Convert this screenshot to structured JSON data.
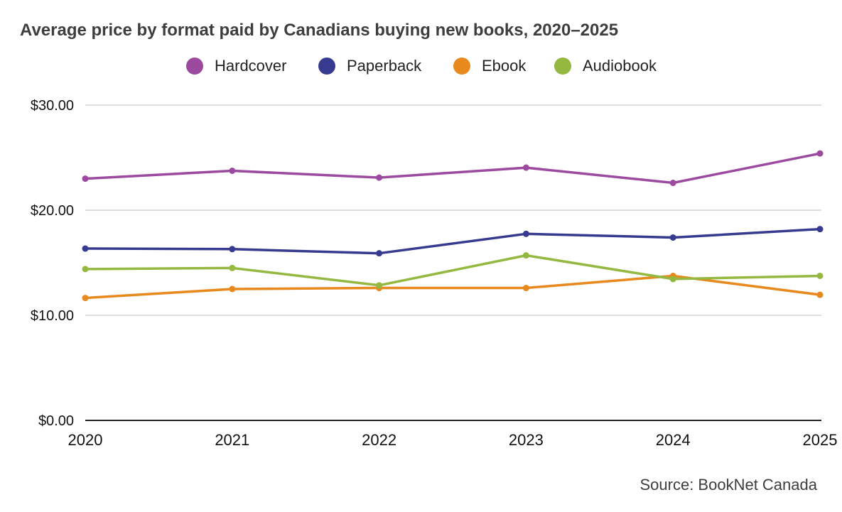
{
  "chart_data": {
    "type": "line",
    "title": "Average price by format paid by Canadians buying new books, 2020–2025",
    "xlabel": "",
    "ylabel": "",
    "x": [
      "2020",
      "2021",
      "2022",
      "2023",
      "2024",
      "2025"
    ],
    "ylim": [
      0,
      30
    ],
    "y_ticks": [
      {
        "value": 0,
        "label": "$0.00"
      },
      {
        "value": 10,
        "label": "$10.00"
      },
      {
        "value": 20,
        "label": "$20.00"
      },
      {
        "value": 30,
        "label": "$30.00"
      }
    ],
    "grid": true,
    "legend_position": "top-center",
    "series": [
      {
        "name": "Hardcover",
        "color": "#9b4a9f",
        "values": [
          23.0,
          23.75,
          23.1,
          24.05,
          22.6,
          25.4
        ]
      },
      {
        "name": "Paperback",
        "color": "#363b8f",
        "values": [
          16.35,
          16.3,
          15.9,
          17.75,
          17.4,
          18.2
        ]
      },
      {
        "name": "Ebook",
        "color": "#e8891d",
        "values": [
          11.65,
          12.5,
          12.6,
          12.6,
          13.75,
          11.95
        ]
      },
      {
        "name": "Audiobook",
        "color": "#94b840",
        "values": [
          14.4,
          14.5,
          12.85,
          15.7,
          13.45,
          13.75
        ]
      }
    ],
    "source": "Source: BookNet Canada"
  }
}
